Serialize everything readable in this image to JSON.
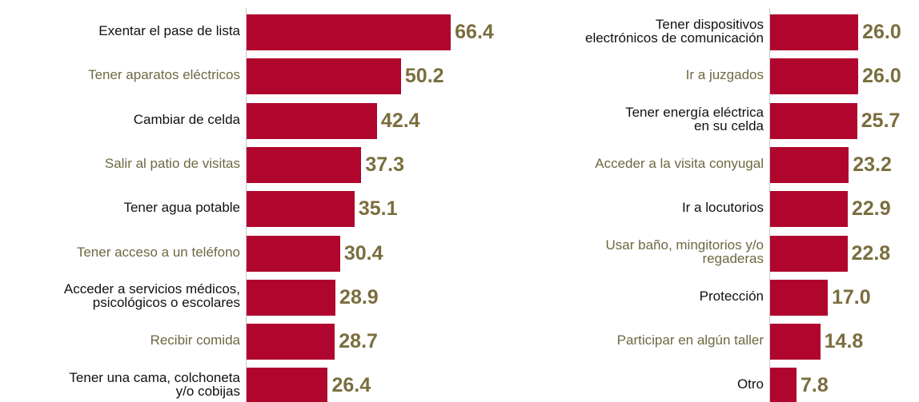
{
  "chart_data": [
    {
      "type": "bar",
      "orientation": "horizontal",
      "categories": [
        "Exentar el pase de lista",
        "Tener aparatos eléctricos",
        "Cambiar de celda",
        "Salir al patio de visitas",
        "Tener agua potable",
        "Tener acceso a un teléfono",
        "Acceder a servicios médicos,\npsicológicos o escolares",
        "Recibir comida",
        "Tener una cama, colchoneta\ny/o cobijas"
      ],
      "values": [
        66.4,
        50.2,
        42.4,
        37.3,
        35.1,
        30.4,
        28.9,
        28.7,
        26.4
      ],
      "value_labels": [
        "66.4",
        "50.2",
        "42.4",
        "37.3",
        "35.1",
        "30.4",
        "28.9",
        "28.7",
        "26.4"
      ],
      "color": "#b0062e",
      "label_colors": [
        "#111111",
        "#6e6842"
      ],
      "value_label_color": "#7a6e3e",
      "xlim": [
        0,
        70
      ]
    },
    {
      "type": "bar",
      "orientation": "horizontal",
      "categories": [
        "Tener dispositivos\nelectrónicos de comunicación",
        "Ir a juzgados",
        "Tener energía eléctrica\nen su celda",
        "Acceder a la visita conyugal",
        "Ir a locutorios",
        "Usar baño, mingitorios y/o\nregaderas",
        "Protección",
        "Participar en algún taller",
        "Otro"
      ],
      "values": [
        26.0,
        26.0,
        25.7,
        23.2,
        22.9,
        22.8,
        17.0,
        14.8,
        7.8
      ],
      "value_labels": [
        "26.0",
        "26.0",
        "25.7",
        "23.2",
        "22.9",
        "22.8",
        "17.0",
        "14.8",
        "7.8"
      ],
      "color": "#b0062e",
      "label_colors": [
        "#111111",
        "#6e6842"
      ],
      "value_label_color": "#7a6e3e",
      "xlim": [
        0,
        30
      ]
    }
  ]
}
